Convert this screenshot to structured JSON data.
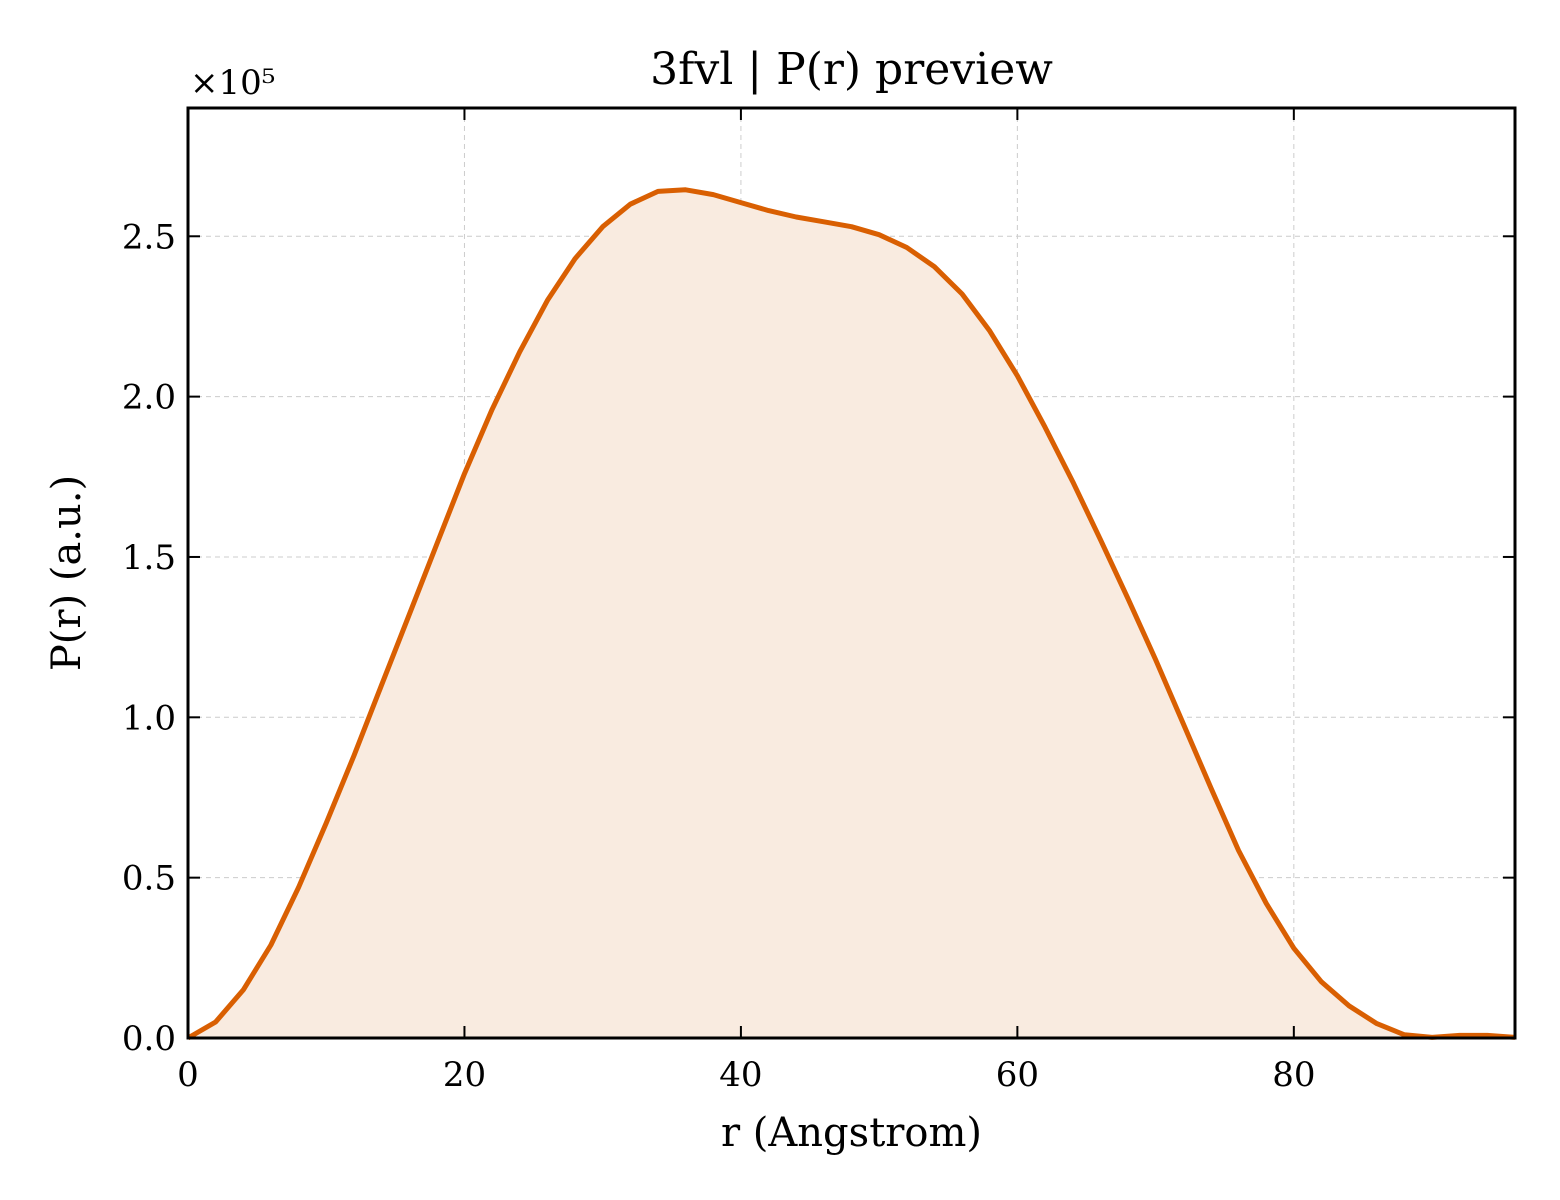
{
  "chart_data": {
    "type": "area",
    "title": "3fvl | P(r) preview",
    "xlabel": "r (Angstrom)",
    "ylabel": "P(r) (a.u.)",
    "y_multiplier_label": "×10⁵",
    "y_scale_factor": 100000,
    "xlim": [
      0,
      96
    ],
    "ylim": [
      0,
      2.9
    ],
    "xticks": [
      0,
      20,
      40,
      60,
      80
    ],
    "xtick_labels": [
      "0",
      "20",
      "40",
      "60",
      "80"
    ],
    "yticks": [
      0.0,
      0.5,
      1.0,
      1.5,
      2.0,
      2.5
    ],
    "ytick_labels": [
      "0.0",
      "0.5",
      "1.0",
      "1.5",
      "2.0",
      "2.5"
    ],
    "grid": true,
    "line_color": "#d95f02",
    "fill_color": "#f9ebe0",
    "series": [
      {
        "x": [
          0,
          2,
          4,
          6,
          8,
          10,
          12,
          14,
          16,
          18,
          20,
          22,
          24,
          26,
          28,
          30,
          32,
          34,
          36,
          38,
          40,
          42,
          44,
          46,
          48,
          50,
          52,
          54,
          56,
          58,
          60,
          62,
          64,
          66,
          68,
          70,
          72,
          74,
          76,
          78,
          80,
          82,
          84,
          86,
          88,
          90,
          92,
          94,
          96
        ],
        "y": [
          0.0,
          0.05,
          0.15,
          0.29,
          0.47,
          0.67,
          0.88,
          1.1,
          1.32,
          1.54,
          1.76,
          1.96,
          2.14,
          2.3,
          2.43,
          2.53,
          2.6,
          2.64,
          2.645,
          2.63,
          2.605,
          2.58,
          2.56,
          2.545,
          2.53,
          2.505,
          2.465,
          2.405,
          2.32,
          2.205,
          2.065,
          1.905,
          1.735,
          1.555,
          1.37,
          1.18,
          0.98,
          0.78,
          0.585,
          0.42,
          0.28,
          0.175,
          0.1,
          0.045,
          0.01,
          0.002,
          0.008,
          0.008,
          0.002
        ]
      }
    ]
  }
}
